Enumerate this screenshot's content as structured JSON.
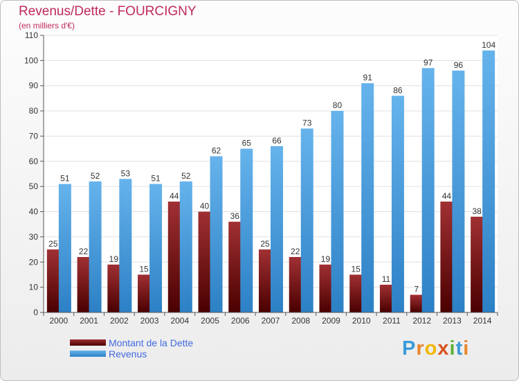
{
  "title": "Revenus/Dette - FOURCIGNY",
  "subtitle": "(en milliers d'€)",
  "logo_text": "Proxiti",
  "colors": {
    "debt_top": "#a03033",
    "debt_bottom": "#4a0000",
    "rev_top": "#66b3ec",
    "rev_bottom": "#2c80c5",
    "grid": "#e0e0e0",
    "axis": "#555555",
    "title": "#c0295a",
    "legend_text": "#4169e1"
  },
  "chart_data": {
    "type": "bar",
    "title": "Revenus/Dette - FOURCIGNY",
    "subtitle": "(en milliers d'€)",
    "categories": [
      "2000",
      "2001",
      "2002",
      "2003",
      "2004",
      "2005",
      "2006",
      "2007",
      "2008",
      "2009",
      "2010",
      "2011",
      "2012",
      "2013",
      "2014"
    ],
    "series": [
      {
        "name": "Montant de la Dette",
        "values": [
          25,
          22,
          19,
          15,
          44,
          40,
          36,
          25,
          22,
          19,
          15,
          11,
          7,
          44,
          38
        ]
      },
      {
        "name": "Revenus",
        "values": [
          51,
          52,
          53,
          51,
          52,
          62,
          65,
          66,
          73,
          80,
          91,
          86,
          97,
          96,
          104
        ]
      }
    ],
    "ylim": [
      0,
      110
    ],
    "yticks": [
      0,
      10,
      20,
      30,
      40,
      50,
      60,
      70,
      80,
      90,
      100,
      110
    ],
    "grid": true,
    "legend": "bottom-left",
    "data_labels": true
  }
}
